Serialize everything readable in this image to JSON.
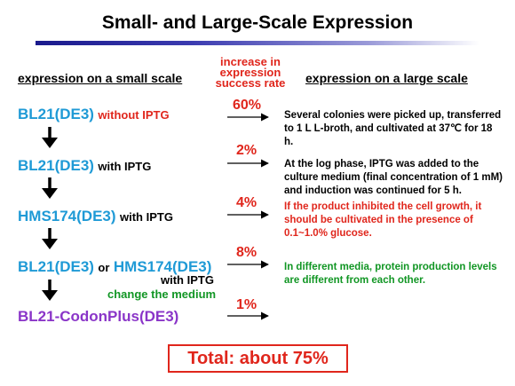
{
  "title": "Small- and Large-Scale Expression",
  "headers": {
    "small_scale": "expression on a small scale",
    "rate": "increase in expression success rate",
    "large_scale": "expression on a large scale"
  },
  "steps": [
    {
      "strain": "BL21(DE3)",
      "condition": "without IPTG",
      "rate": "60%"
    },
    {
      "strain": "BL21(DE3)",
      "condition": "with IPTG",
      "rate": "2%"
    },
    {
      "strain": "HMS174(DE3)",
      "condition": "with IPTG",
      "rate": "4%"
    },
    {
      "strain": "BL21(DE3)",
      "connector": "or",
      "strain_alt": "HMS174(DE3)",
      "condition": "with IPTG",
      "condition_extra": "change the medium",
      "rate": "8%"
    },
    {
      "strain": "BL21-CodonPlus(DE3)",
      "rate": "1%"
    }
  ],
  "notes": [
    "Several colonies were picked up, transferred to 1 L L-broth, and cultivated at 37℃ for 18 h.",
    "At the log phase, IPTG was added to the culture medium (final concentration of 1 mM) and induction was continued for 5 h.",
    "If the product inhibited the cell growth, it should be cultivated in the presence of 0.1~1.0% glucose.",
    "In different media, protein production levels are different from each other."
  ],
  "total": "Total: about 75%",
  "colors": {
    "strain_blue": "#1f9ad6",
    "strain_purple": "#8a35c8",
    "accent_red": "#e0261c",
    "accent_green": "#119624",
    "rule_navy": "#1a1a8c"
  }
}
